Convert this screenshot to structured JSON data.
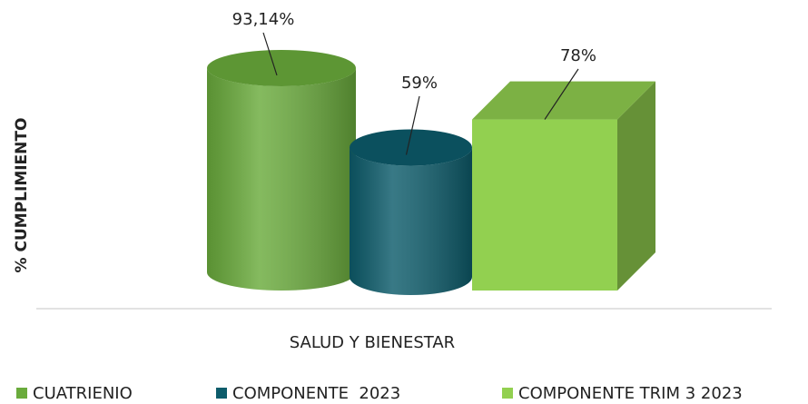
{
  "chart_data": {
    "type": "bar3d",
    "categories": [
      "SALUD Y BIENESTAR"
    ],
    "y_label": "% CUMPLIMIENTO",
    "series": [
      {
        "name": "CUATRIENIO",
        "color": "#6aab3c",
        "values": [
          93.14
        ],
        "value_labels": [
          "93,14%"
        ]
      },
      {
        "name": "COMPONENTE  2023",
        "color": "#0d5c6b",
        "values": [
          59
        ],
        "value_labels": [
          "59%"
        ]
      },
      {
        "name": "COMPONENTE TRIM 3 2023",
        "color": "#92d050",
        "values": [
          78
        ],
        "value_labels": [
          "78%"
        ]
      }
    ]
  }
}
